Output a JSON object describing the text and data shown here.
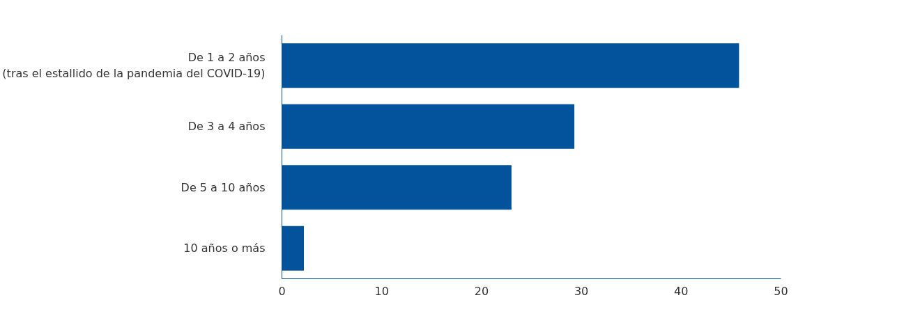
{
  "chart_data": {
    "type": "bar",
    "orientation": "horizontal",
    "categories": [
      "De 1 a 2 años\n(tras el estallido de la pandemia del COVID-19)",
      "De 3 a 4 años",
      "De 5 a 10 años",
      "10 años o más"
    ],
    "values": [
      45.8,
      29.3,
      23.0,
      2.2
    ],
    "color": "#02529c",
    "xlim": [
      0,
      50
    ],
    "xticks": [
      0,
      10,
      20,
      30,
      40,
      50
    ],
    "grid": false
  }
}
